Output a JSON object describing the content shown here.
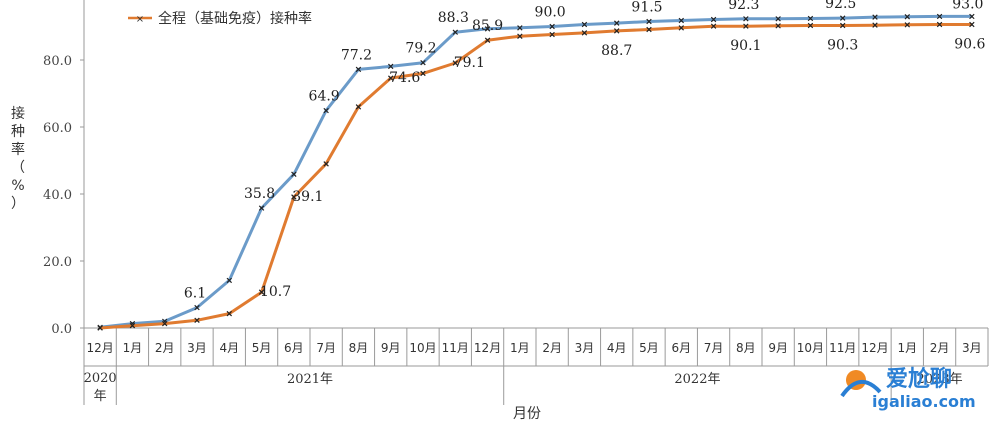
{
  "chart_data": {
    "type": "line",
    "ylabel": "接种率（%）",
    "xlabel": "月份",
    "ylim": [
      0,
      95
    ],
    "yticks": [
      "0.0",
      "20.0",
      "40.0",
      "60.0",
      "80.0"
    ],
    "grid": false,
    "legend_position": "top-left",
    "categories": [
      "12月",
      "1月",
      "2月",
      "3月",
      "4月",
      "5月",
      "6月",
      "7月",
      "8月",
      "9月",
      "10月",
      "11月",
      "12月",
      "1月",
      "2月",
      "3月",
      "4月",
      "5月",
      "6月",
      "7月",
      "8月",
      "9月",
      "10月",
      "11月",
      "12月",
      "1月",
      "2月",
      "3月"
    ],
    "year_groups": [
      {
        "label": "2020年",
        "start": 0,
        "end": 0
      },
      {
        "label": "2021年",
        "start": 1,
        "end": 12
      },
      {
        "label": "2022年",
        "start": 13,
        "end": 24
      },
      {
        "label": "2023年",
        "start": 25,
        "end": 27
      }
    ],
    "series": [
      {
        "color": "#6b9bc9",
        "values": [
          0.2,
          1.3,
          2.0,
          6.1,
          14.2,
          35.8,
          45.9,
          64.9,
          77.2,
          78.1,
          79.2,
          88.3,
          89.3,
          89.6,
          90.0,
          90.6,
          91.0,
          91.5,
          91.8,
          92.1,
          92.3,
          92.3,
          92.4,
          92.5,
          92.8,
          92.9,
          93.0,
          93.0
        ],
        "labels": {
          "3": "6.1",
          "5": "35.8",
          "7": "64.9",
          "8": "77.2",
          "10": "79.2",
          "11": "88.3",
          "14": "90.0",
          "17": "91.5",
          "20": "92.3",
          "23": "92.5",
          "27": "93.0"
        }
      },
      {
        "name": "全程（基础免疫）接种率",
        "color": "#e07b30",
        "values": [
          0.0,
          0.7,
          1.3,
          2.3,
          4.3,
          10.7,
          39.1,
          49.0,
          66.0,
          74.6,
          76.0,
          79.1,
          85.9,
          87.1,
          87.6,
          88.1,
          88.7,
          89.1,
          89.6,
          90.1,
          90.1,
          90.2,
          90.3,
          90.3,
          90.4,
          90.5,
          90.6,
          90.6
        ],
        "labels": {
          "5": "10.7",
          "6": "39.1",
          "9": "74.6",
          "11": "79.1",
          "12": "85.9",
          "16": "88.7",
          "20": "90.1",
          "23": "90.3",
          "27": "90.6"
        }
      }
    ]
  },
  "watermark": {
    "text_main": "爱尬聊",
    "text_url": "igaliao.com"
  }
}
